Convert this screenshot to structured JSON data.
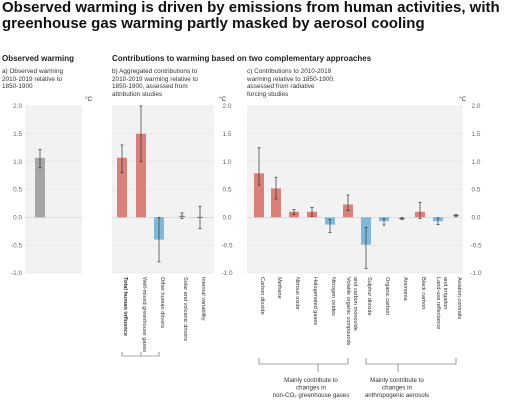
{
  "title": "Observed warming is driven by emissions from human activities, with greenhouse gas warming partly masked by aerosol cooling",
  "heading_a": "Observed warming",
  "heading_bc": "Contributions to warming based on two complementary approaches",
  "sub_a": [
    "a) Observed warming",
    "2010-2019 relative to",
    "1850-1900"
  ],
  "sub_b": [
    "b) Aggregated contributions to",
    "2010-2019 warming relative to",
    "1850-1900, assessed from",
    "attribution studies"
  ],
  "sub_c": [
    "c) Contributions to 2010-2019",
    "warming relative to 1850-1900,",
    "assessed from radiative",
    "forcing studies"
  ],
  "unit": "°C",
  "y_ticks": [
    "2.0",
    "1.5",
    "1.0",
    "0.5",
    "0.0",
    "-0.5",
    "-1.0"
  ],
  "brackets": {
    "nonco2": [
      "Mainly contribute to",
      "changes in",
      "non-CO₂ greenhouse gases"
    ],
    "aerosols": [
      "Mainly contribute to",
      "changes in",
      "anthropogenic aerosols"
    ]
  },
  "colors": {
    "observed": "#a6a6a6",
    "warming": "#d9807a",
    "cooling": "#7fb8d9",
    "panel_bg": "#f2f2f2",
    "neutral": "#999999"
  },
  "chart_data": [
    {
      "type": "bar",
      "title": "a) Observed warming 2010-2019 relative to 1850-1900",
      "ylabel": "°C",
      "ylim": [
        -1.0,
        2.0
      ],
      "categories": [
        ""
      ],
      "values": [
        1.07
      ],
      "error_low": [
        0.89
      ],
      "error_high": [
        1.22
      ]
    },
    {
      "type": "bar",
      "title": "b) Aggregated contributions to 2010-2019 warming relative to 1850-1900, assessed from attribution studies",
      "ylabel": "°C",
      "ylim": [
        -1.0,
        2.0
      ],
      "categories": [
        "Total human influence",
        "Well-mixed greenhouse gases",
        "Other human drivers",
        "Solar and volcanic drivers",
        "Internal variability"
      ],
      "values": [
        1.07,
        1.5,
        -0.4,
        0.02,
        0.0
      ],
      "error_low": [
        0.8,
        1.0,
        -0.8,
        -0.02,
        -0.2
      ],
      "error_high": [
        1.3,
        2.0,
        0.0,
        0.08,
        0.2
      ]
    },
    {
      "type": "bar",
      "title": "c) Contributions to 2010-2019 warming relative to 1850-1900, assessed from radiative forcing studies",
      "ylabel": "°C",
      "ylim": [
        -1.0,
        2.0
      ],
      "categories": [
        "Carbon dioxide",
        "Methane",
        "Nitrous oxide",
        "Halogenated gases",
        "Nitrogen oxides",
        "Volatile organic compounds and carbon monoxide",
        "Sulphur dioxide",
        "Organic carbon",
        "Ammonia",
        "Black carbon",
        "Land-use reflectance and irrigation",
        "Aviation contrails"
      ],
      "values": [
        0.79,
        0.52,
        0.1,
        0.1,
        -0.13,
        0.23,
        -0.49,
        -0.07,
        -0.02,
        0.1,
        -0.07,
        0.03
      ],
      "error_low": [
        0.58,
        0.33,
        0.05,
        0.02,
        -0.27,
        0.12,
        -0.92,
        -0.14,
        -0.04,
        -0.02,
        -0.13,
        0.01
      ],
      "error_high": [
        1.25,
        0.72,
        0.14,
        0.18,
        -0.04,
        0.4,
        -0.18,
        -0.02,
        0.0,
        0.27,
        -0.01,
        0.05
      ]
    }
  ]
}
